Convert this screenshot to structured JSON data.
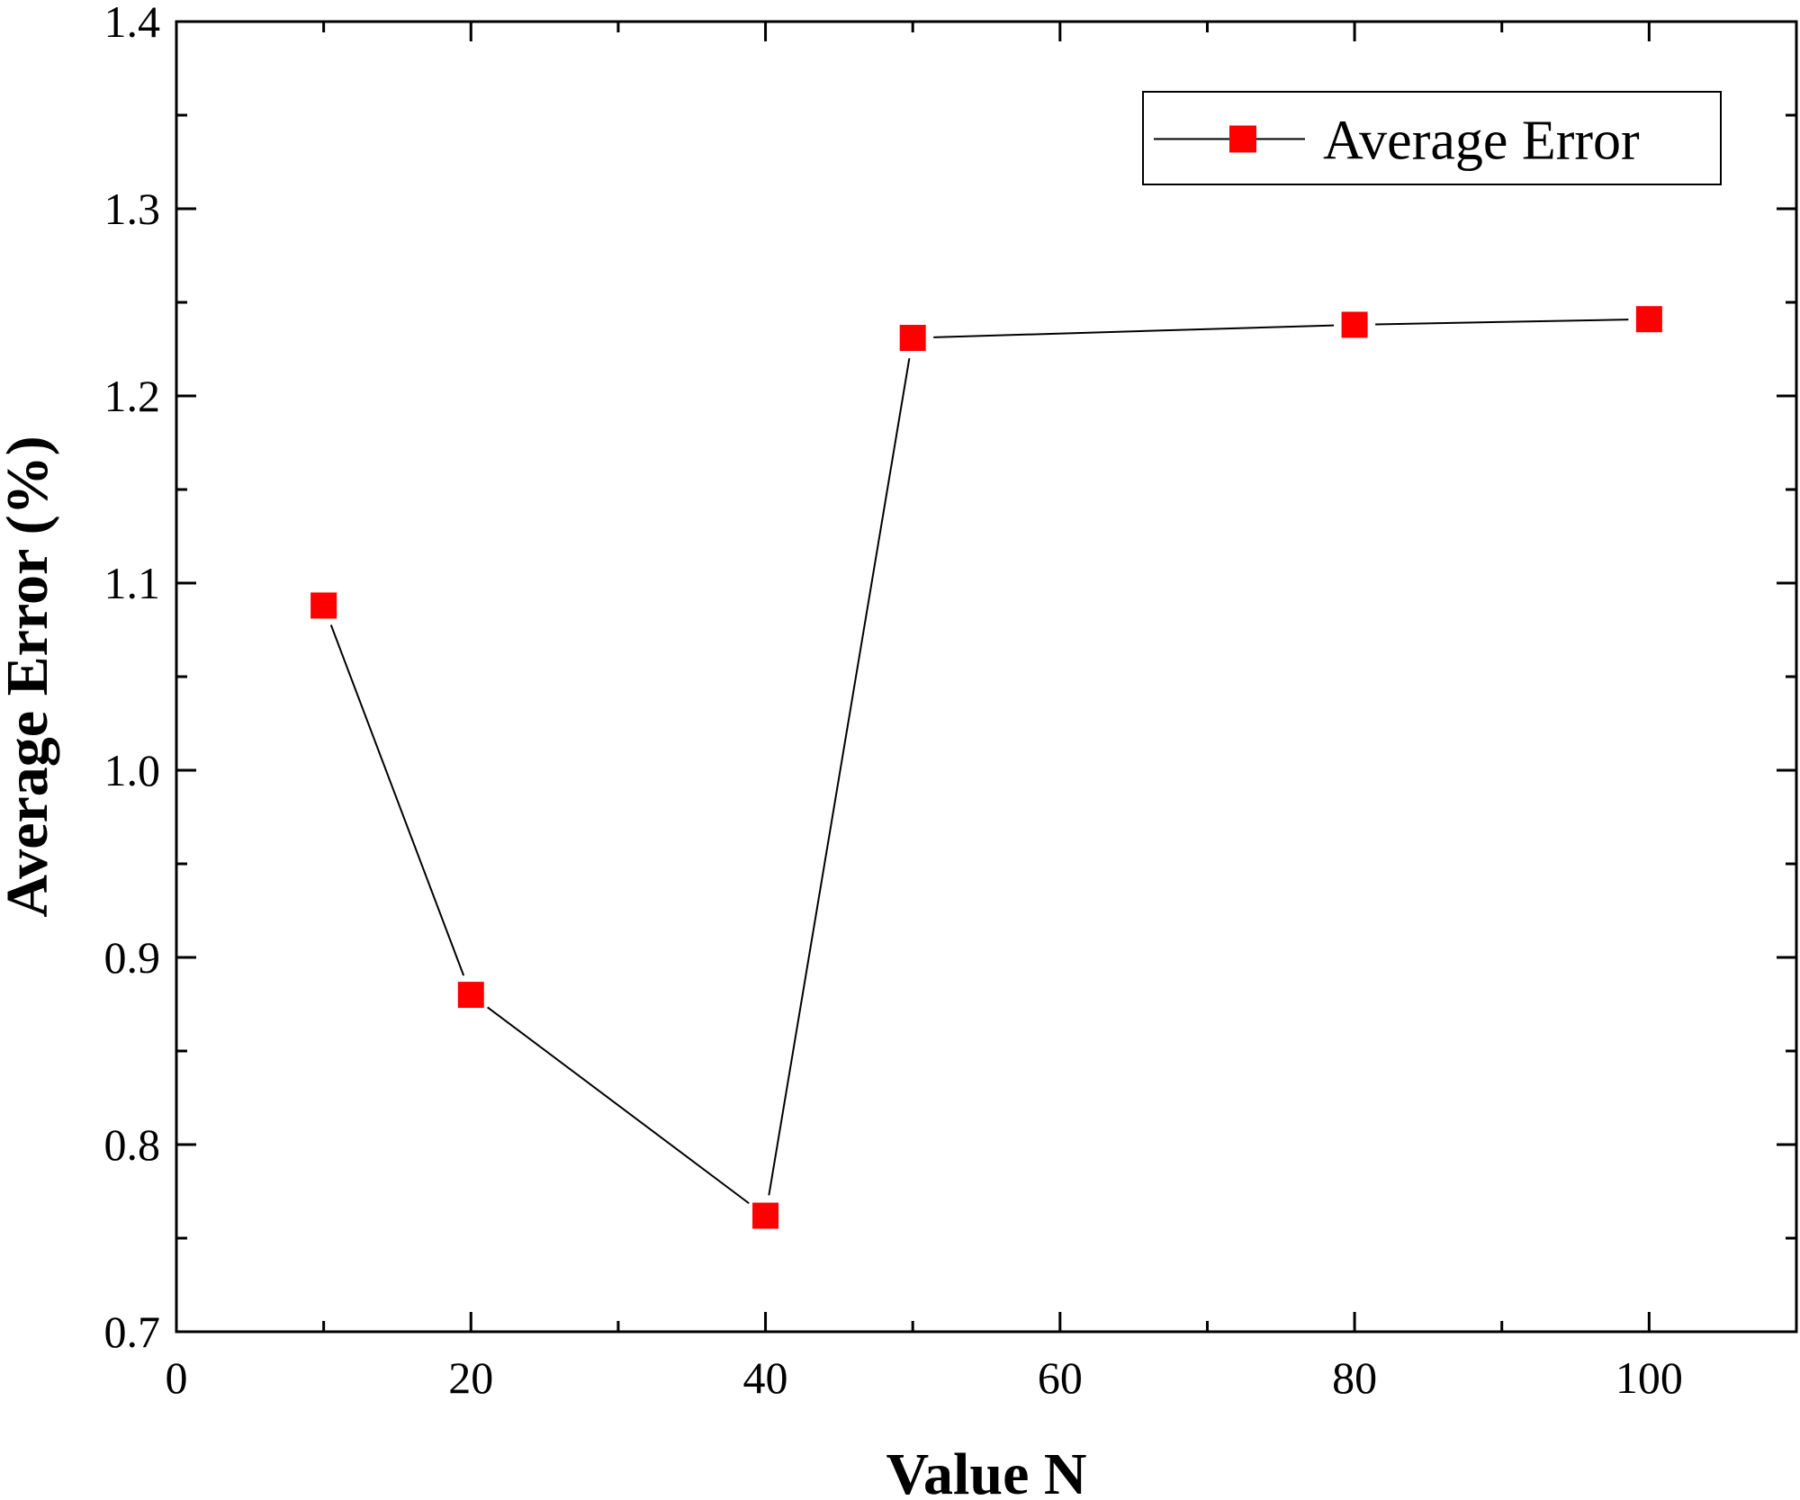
{
  "chart_data": {
    "type": "line",
    "xlabel": "Value N",
    "ylabel": "Average Error (%)",
    "xlim": [
      0,
      110
    ],
    "ylim": [
      0.7,
      1.4
    ],
    "xticks": [
      0,
      20,
      40,
      60,
      80,
      100
    ],
    "xtick_labels": [
      "0",
      "20",
      "40",
      "60",
      "80",
      "100"
    ],
    "yticks": [
      0.7,
      0.8,
      0.9,
      1.0,
      1.1,
      1.2,
      1.3,
      1.4
    ],
    "ytick_labels": [
      "0.7",
      "0.8",
      "0.9",
      "1.0",
      "1.1",
      "1.2",
      "1.3",
      "1.4"
    ],
    "grid": false,
    "legend_position": "top-right",
    "series": [
      {
        "name": "Average Error",
        "color": "#ff0000",
        "line_color": "#000000",
        "marker": "square",
        "x": [
          10,
          20,
          40,
          50,
          80,
          100
        ],
        "y": [
          1.088,
          0.88,
          0.762,
          1.231,
          1.238,
          1.241
        ]
      }
    ]
  }
}
